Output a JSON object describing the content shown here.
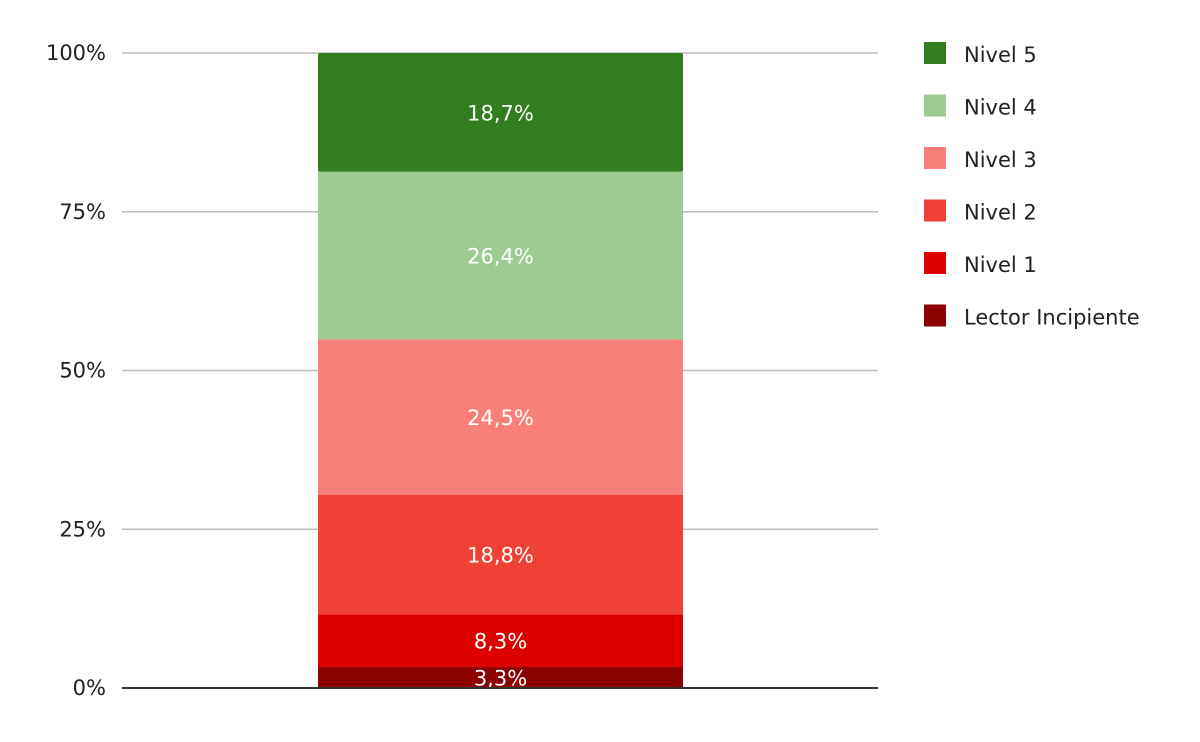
{
  "chart_data": {
    "type": "bar",
    "stacked": true,
    "categories": [
      ""
    ],
    "series": [
      {
        "name": "Lector Incipiente",
        "values": [
          3.3
        ],
        "label": "3,3%",
        "color": "#8b0000"
      },
      {
        "name": "Nivel 1",
        "values": [
          8.3
        ],
        "label": "8,3%",
        "color": "#dd0000"
      },
      {
        "name": "Nivel 2",
        "values": [
          18.8
        ],
        "label": "18,8%",
        "color": "#ef4136"
      },
      {
        "name": "Nivel 3",
        "values": [
          24.5
        ],
        "label": "24,5%",
        "color": "#f9807a"
      },
      {
        "name": "Nivel 4",
        "values": [
          26.4
        ],
        "label": "26,4%",
        "color": "#9ecb92"
      },
      {
        "name": "Nivel 5",
        "values": [
          18.7
        ],
        "label": "18,7%",
        "color": "#327d1f"
      }
    ],
    "yticks": [
      {
        "value": 0,
        "label": "0%"
      },
      {
        "value": 25,
        "label": "25%"
      },
      {
        "value": 50,
        "label": "50%"
      },
      {
        "value": 75,
        "label": "75%"
      },
      {
        "value": 100,
        "label": "100%"
      }
    ],
    "ylim": [
      0,
      100
    ],
    "grid": true,
    "legend_position": "right",
    "legend_order": [
      "Nivel 5",
      "Nivel 4",
      "Nivel 3",
      "Nivel 2",
      "Nivel 1",
      "Lector Incipiente"
    ]
  }
}
